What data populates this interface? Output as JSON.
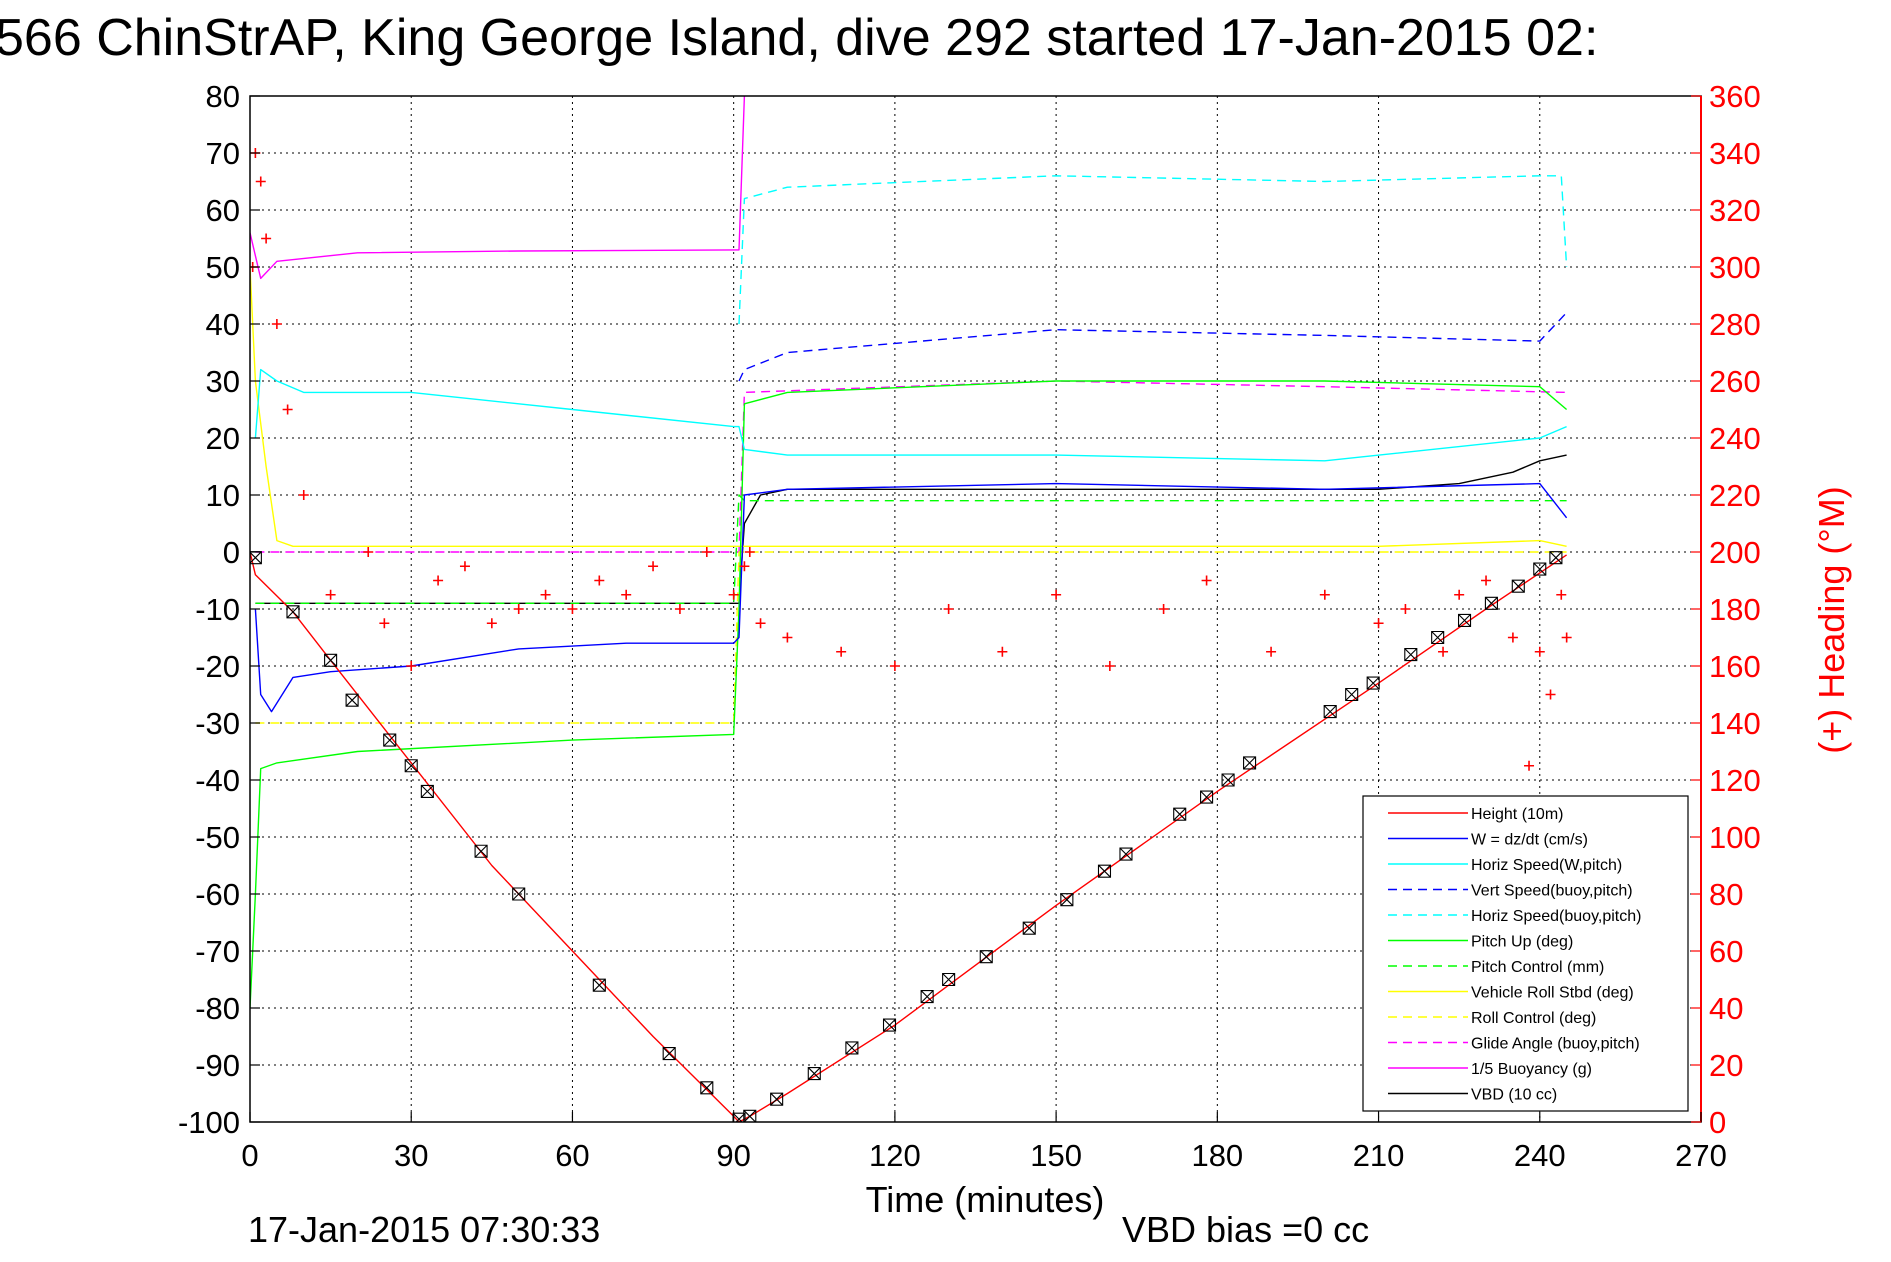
{
  "chart_data": {
    "type": "line",
    "title": "566 ChinStrAP, King George Island, dive 292 started 17-Jan-2015 02:",
    "xlabel": "Time (minutes)",
    "ylabel": "",
    "y2label": "(+) Heading (°M)",
    "xlim": [
      0,
      270
    ],
    "ylim": [
      -100,
      80
    ],
    "y2lim": [
      0,
      360
    ],
    "xticks": [
      "0",
      "30",
      "60",
      "90",
      "120",
      "150",
      "180",
      "210",
      "240",
      "270"
    ],
    "yticks": [
      "80",
      "70",
      "60",
      "50",
      "40",
      "30",
      "20",
      "10",
      "0",
      "-10",
      "-20",
      "-30",
      "-40",
      "-50",
      "-60",
      "-70",
      "-80",
      "-90",
      "-100"
    ],
    "y2ticks": [
      "360",
      "340",
      "320",
      "300",
      "280",
      "260",
      "240",
      "220",
      "200",
      "180",
      "160",
      "140",
      "120",
      "100",
      "80",
      "60",
      "40",
      "20",
      "0"
    ],
    "grid": true,
    "legend_position": "bottom-right",
    "footer_left": "17-Jan-2015 07:30:33",
    "footer_right": "VBD bias =0 cc",
    "colors": {
      "heading": "#ff0000",
      "axis_right": "#ff0000"
    },
    "series": [
      {
        "name": "Height (10m)",
        "color": "#ff0000",
        "style": "solid",
        "x": [
          0,
          1,
          8,
          15,
          30,
          45,
          60,
          75,
          90,
          91,
          93,
          100,
          120,
          150,
          180,
          210,
          230,
          245
        ],
        "y": [
          0,
          -4,
          -10.5,
          -19,
          -37,
          -55,
          -70,
          -85,
          -99,
          -100,
          -99,
          -95,
          -83,
          -62,
          -42,
          -23,
          -10,
          -0.5
        ]
      },
      {
        "name": "W = dz/dt (cm/s)",
        "color": "#0000ff",
        "style": "solid",
        "x": [
          1,
          2,
          4,
          8,
          15,
          30,
          50,
          70,
          90,
          91,
          92,
          100,
          150,
          200,
          240,
          245
        ],
        "y": [
          -10,
          -25,
          -28,
          -22,
          -21,
          -20,
          -17,
          -16,
          -16,
          -15,
          10,
          11,
          12,
          11,
          12,
          6
        ]
      },
      {
        "name": "Horiz Speed(W,pitch)",
        "color": "#00ffff",
        "style": "solid",
        "x": [
          1,
          2,
          5,
          10,
          30,
          60,
          90,
          91,
          92,
          100,
          150,
          200,
          240,
          245
        ],
        "y": [
          20,
          32,
          30,
          28,
          28,
          25,
          22,
          22,
          18,
          17,
          17,
          16,
          20,
          22
        ]
      },
      {
        "name": "Vert Speed(buoy,pitch)",
        "color": "#0000ff",
        "style": "dashed",
        "x": [
          91,
          92,
          100,
          150,
          200,
          240,
          245
        ],
        "y": [
          30,
          32,
          35,
          39,
          38,
          37,
          42
        ]
      },
      {
        "name": "Horiz Speed(buoy,pitch)",
        "color": "#00ffff",
        "style": "dashed",
        "x": [
          91,
          92,
          100,
          150,
          200,
          240,
          244,
          245
        ],
        "y": [
          40,
          62,
          64,
          66,
          65,
          66,
          66,
          50
        ]
      },
      {
        "name": "Pitch Up (deg)",
        "color": "#00ff00",
        "style": "solid",
        "x": [
          0,
          1,
          2,
          5,
          20,
          60,
          90,
          91,
          92,
          100,
          150,
          200,
          240,
          245
        ],
        "y": [
          -80,
          -60,
          -38,
          -37,
          -35,
          -33,
          -32,
          -10,
          26,
          28,
          30,
          30,
          29,
          25
        ]
      },
      {
        "name": "Pitch Control (mm)",
        "color": "#00ff00",
        "style": "dashed",
        "x": [
          1,
          2,
          90,
          91,
          92,
          245
        ],
        "y": [
          -9,
          -9,
          -9,
          10,
          9,
          9
        ]
      },
      {
        "name": "Vehicle Roll Stbd (deg)",
        "color": "#ffff00",
        "style": "solid",
        "x": [
          0,
          1,
          3,
          5,
          8,
          60,
          90,
          92,
          120,
          150,
          180,
          210,
          240,
          245
        ],
        "y": [
          50,
          30,
          15,
          2,
          1,
          1,
          1,
          1,
          1,
          1,
          1,
          1,
          2,
          1
        ]
      },
      {
        "name": "Roll Control (deg)",
        "color": "#ffff00",
        "style": "dashed",
        "x": [
          1,
          30,
          90,
          91,
          245
        ],
        "y": [
          -30,
          -30,
          -30,
          0,
          0
        ]
      },
      {
        "name": "Glide Angle (buoy,pitch)",
        "color": "#ff00ff",
        "style": "dashed",
        "x": [
          1,
          90,
          91,
          92,
          150,
          200,
          245
        ],
        "y": [
          0,
          0,
          0,
          28,
          30,
          29,
          28
        ]
      },
      {
        "name": "1/5 Buoyancy (g)",
        "color": "#ff00ff",
        "style": "solid",
        "x": [
          0,
          2,
          5,
          20,
          50,
          90,
          91,
          92
        ],
        "y": [
          56,
          48,
          51,
          52.5,
          52.8,
          53,
          53,
          80
        ]
      },
      {
        "name": "VBD (10 cc)",
        "color": "#000000",
        "style": "solid",
        "x": [
          1,
          2,
          90,
          91,
          92,
          95,
          100,
          150,
          210,
          225,
          235,
          240,
          245
        ],
        "y": [
          -9,
          -9,
          -9,
          -9,
          5,
          10,
          11,
          11,
          11,
          12,
          14,
          16,
          17
        ]
      }
    ],
    "heading_series": {
      "name": "(+) Heading (°M)",
      "x": [
        0.5,
        1,
        2,
        3,
        5,
        7,
        10,
        15,
        22,
        25,
        30,
        35,
        40,
        45,
        50,
        55,
        60,
        65,
        70,
        75,
        80,
        85,
        90,
        92,
        93,
        95,
        100,
        110,
        120,
        130,
        140,
        150,
        160,
        170,
        178,
        190,
        200,
        210,
        215,
        222,
        225,
        230,
        235,
        238,
        240,
        242,
        244,
        245
      ],
      "y": [
        300,
        340,
        330,
        310,
        280,
        250,
        220,
        185,
        200,
        175,
        160,
        190,
        195,
        175,
        180,
        185,
        180,
        190,
        185,
        195,
        180,
        200,
        185,
        195,
        200,
        175,
        170,
        165,
        160,
        180,
        165,
        185,
        160,
        180,
        190,
        165,
        185,
        175,
        180,
        165,
        185,
        190,
        170,
        125,
        165,
        150,
        185,
        170
      ]
    },
    "markers": {
      "name": "depth markers",
      "x": [
        1,
        8,
        15,
        19,
        26,
        30,
        33,
        43,
        50,
        65,
        78,
        85,
        91,
        93,
        98,
        105,
        112,
        119,
        126,
        130,
        137,
        145,
        152,
        159,
        163,
        173,
        178,
        182,
        186,
        201,
        205,
        209,
        216,
        221,
        226,
        231,
        236,
        240,
        243
      ],
      "y": [
        -1,
        -10.5,
        -19,
        -26,
        -33,
        -37.5,
        -42,
        -52.5,
        -60,
        -76,
        -88,
        -94,
        -99.5,
        -99,
        -96,
        -91.5,
        -87,
        -83,
        -78,
        -75,
        -71,
        -66,
        -61,
        -56,
        -53,
        -46,
        -43,
        -40,
        -37,
        -28,
        -25,
        -23,
        -18,
        -15,
        -12,
        -9,
        -6,
        -3,
        -1
      ]
    }
  }
}
